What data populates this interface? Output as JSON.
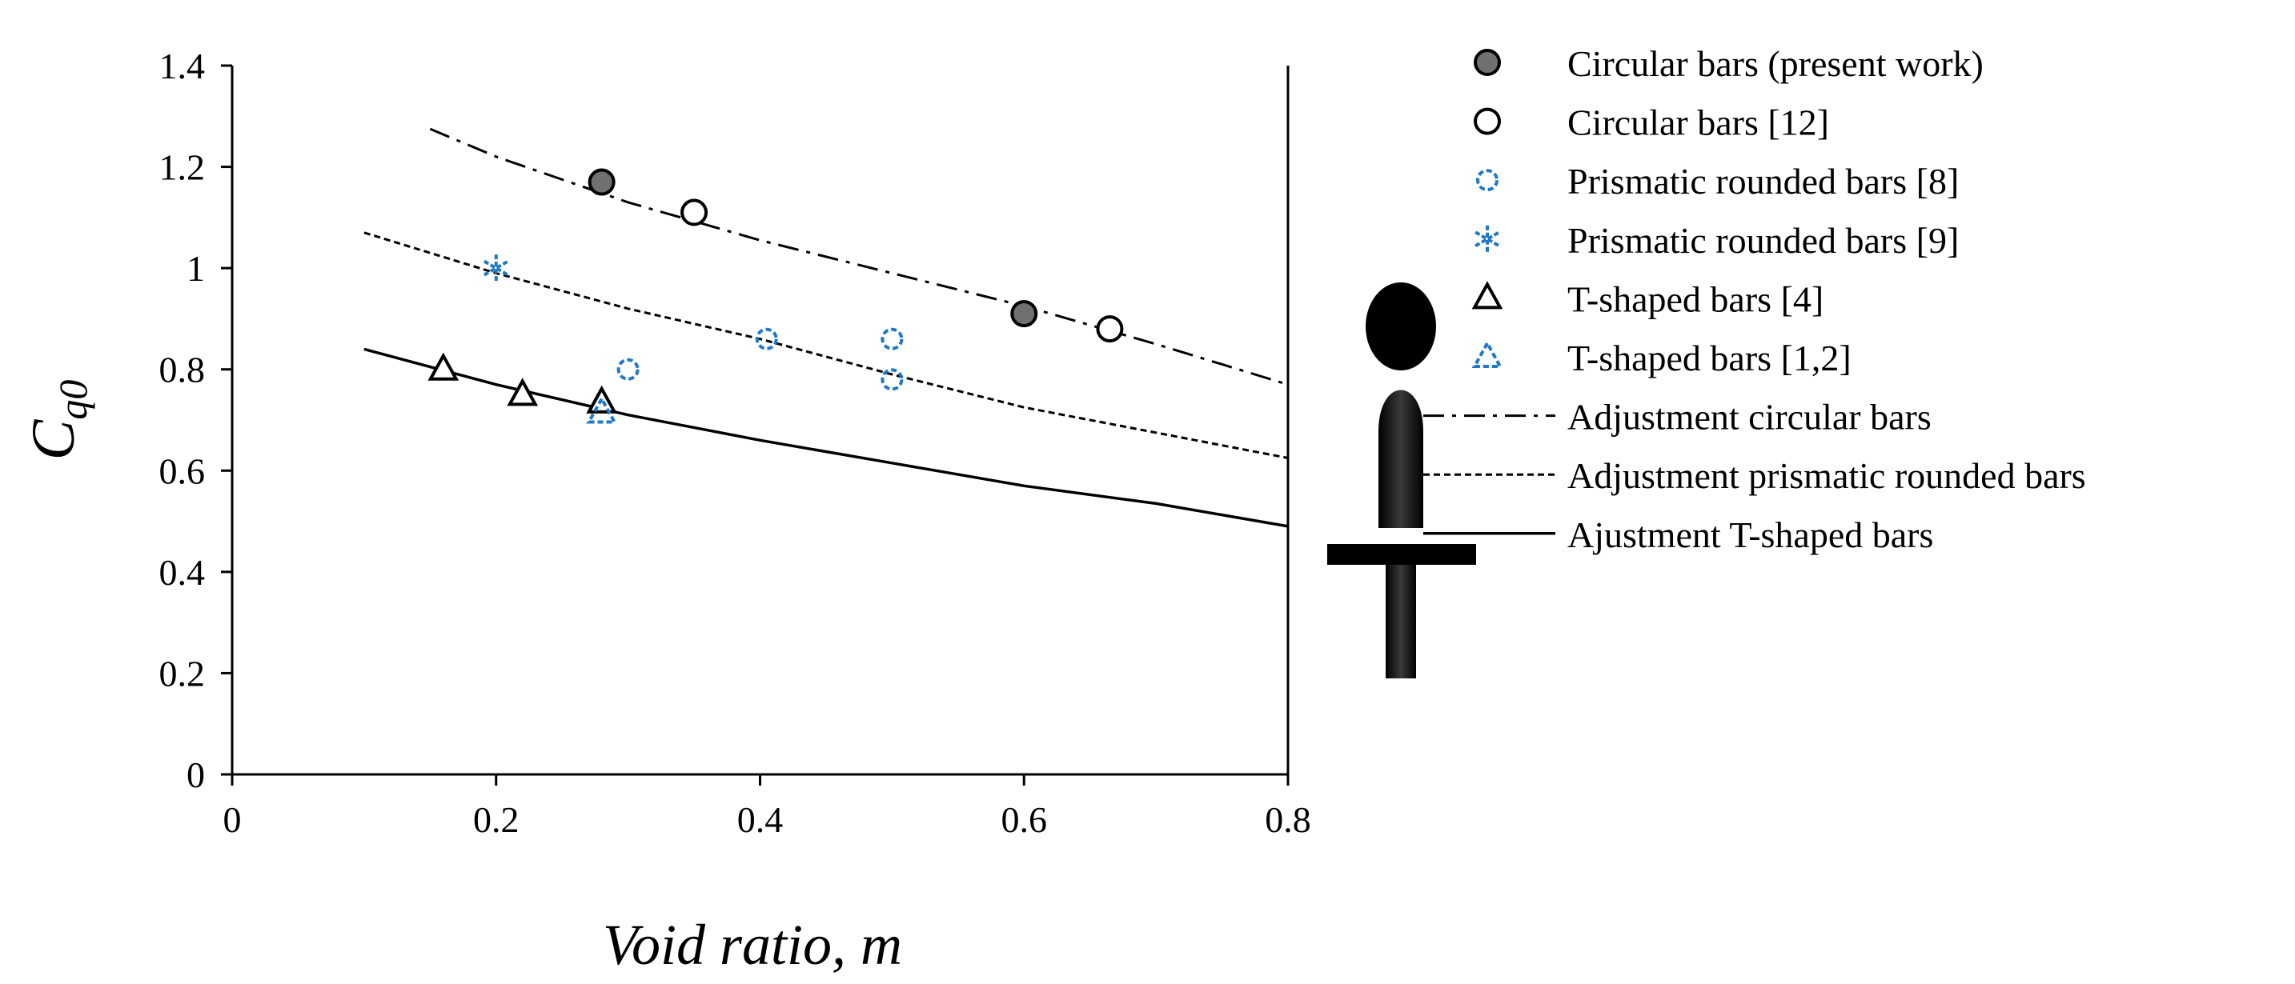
{
  "chart_data": {
    "type": "scatter",
    "title": "",
    "xlabel": "Void ratio, m",
    "ylabel_main": "C",
    "ylabel_sub": "q0",
    "xlim": [
      0,
      0.8
    ],
    "ylim": [
      0,
      1.4
    ],
    "xticks": [
      0,
      0.2,
      0.4,
      0.6,
      0.8
    ],
    "xtick_labels": [
      "0",
      "0.2",
      "0.4",
      "0.6",
      "0.8"
    ],
    "yticks": [
      0,
      0.2,
      0.4,
      0.6,
      0.8,
      1,
      1.2,
      1.4
    ],
    "ytick_labels": [
      "0",
      "0.2",
      "0.4",
      "0.6",
      "0.8",
      "1",
      "1.2",
      "1.4"
    ],
    "grid": false,
    "legend_position": "right",
    "colors": {
      "black": "#000000",
      "grey_fill": "#707070",
      "blue": "#1f78c8"
    },
    "series": [
      {
        "name": "Circular bars (present work)",
        "marker": "filled-circle",
        "color": "#000000",
        "fill": "#707070",
        "points": [
          [
            0.28,
            1.17
          ],
          [
            0.6,
            0.91
          ]
        ]
      },
      {
        "name": "Circular bars [12]",
        "marker": "open-circle",
        "color": "#000000",
        "points": [
          [
            0.35,
            1.11
          ],
          [
            0.665,
            0.88
          ]
        ]
      },
      {
        "name": "Prismatic rounded bars [8]",
        "marker": "dashed-circle",
        "color": "#1f78c8",
        "points": [
          [
            0.3,
            0.8
          ],
          [
            0.405,
            0.86
          ],
          [
            0.5,
            0.86
          ],
          [
            0.5,
            0.78
          ]
        ]
      },
      {
        "name": "Prismatic rounded bars [9]",
        "marker": "asterisk",
        "color": "#1f78c8",
        "points": [
          [
            0.2,
            1.0
          ]
        ]
      },
      {
        "name": "T-shaped bars [4]",
        "marker": "open-triangle",
        "color": "#000000",
        "points": [
          [
            0.16,
            0.8
          ],
          [
            0.22,
            0.75
          ],
          [
            0.28,
            0.735
          ]
        ]
      },
      {
        "name": "T-shaped bars [1,2]",
        "marker": "dashed-triangle",
        "color": "#1f78c8",
        "points": [
          [
            0.28,
            0.715
          ]
        ]
      }
    ],
    "curves": [
      {
        "name": "Adjustment circular bars",
        "style": "dash-dot",
        "points": [
          [
            0.15,
            1.275
          ],
          [
            0.2,
            1.22
          ],
          [
            0.3,
            1.13
          ],
          [
            0.4,
            1.055
          ],
          [
            0.5,
            0.99
          ],
          [
            0.6,
            0.925
          ],
          [
            0.7,
            0.85
          ],
          [
            0.8,
            0.77
          ]
        ]
      },
      {
        "name": "Adjustment prismatic rounded bars",
        "style": "dotted",
        "points": [
          [
            0.1,
            1.07
          ],
          [
            0.2,
            0.99
          ],
          [
            0.3,
            0.92
          ],
          [
            0.4,
            0.86
          ],
          [
            0.5,
            0.79
          ],
          [
            0.6,
            0.725
          ],
          [
            0.7,
            0.675
          ],
          [
            0.8,
            0.625
          ]
        ]
      },
      {
        "name": "Ajustment T-shaped bars",
        "style": "solid",
        "points": [
          [
            0.1,
            0.84
          ],
          [
            0.2,
            0.77
          ],
          [
            0.3,
            0.71
          ],
          [
            0.4,
            0.66
          ],
          [
            0.5,
            0.615
          ],
          [
            0.6,
            0.57
          ],
          [
            0.7,
            0.535
          ],
          [
            0.8,
            0.49
          ]
        ]
      }
    ]
  }
}
